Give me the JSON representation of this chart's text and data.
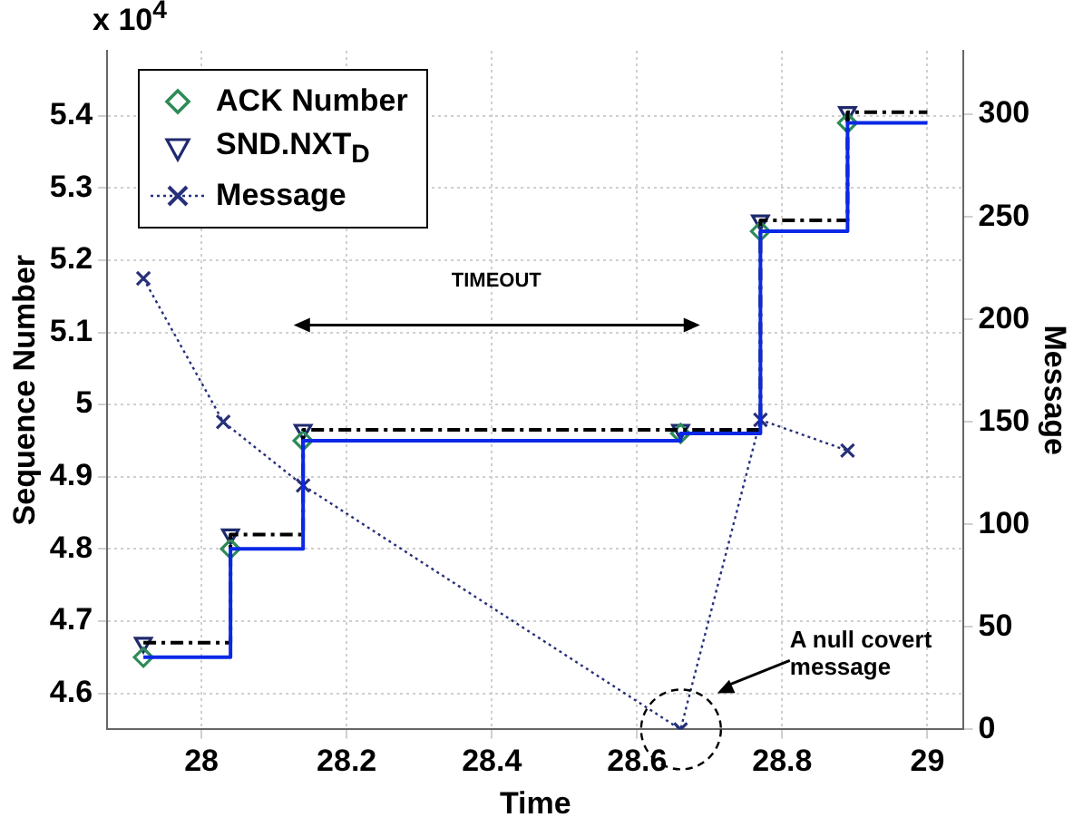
{
  "chart_data": {
    "type": "step",
    "xlabel": "Time",
    "ylabel": "Sequence Number",
    "y2label": "Message",
    "xlim": [
      27.87,
      29.05
    ],
    "xticks": [
      28,
      28.2,
      28.4,
      28.6,
      28.8,
      29
    ],
    "ylim": [
      4.55,
      5.49
    ],
    "yticks": [
      4.6,
      4.7,
      4.8,
      4.9,
      5,
      5.1,
      5.2,
      5.3,
      5.4
    ],
    "y2lim": [
      0,
      331
    ],
    "y2ticks": [
      0,
      50,
      100,
      150,
      200,
      250,
      300
    ],
    "grid": true,
    "legend": "top left",
    "annotations": [
      "x 10$^{4}$",
      "TIMEOUT",
      "A null covert message"
    ],
    "series": [
      {
        "color": "#0a28e6",
        "line_style": "solid",
        "marker": "none",
        "x": [
          27.92,
          28.04,
          28.14,
          28.66,
          28.77,
          28.89,
          29.0
        ],
        "values": [
          4.65,
          4.8,
          4.95,
          4.96,
          5.24,
          5.39,
          5.39
        ]
      },
      {
        "color": "#000000",
        "line_style": "dashed",
        "marker": "none",
        "x": [
          27.92,
          28.04,
          28.14,
          28.66,
          28.77,
          28.89,
          29.0
        ],
        "values": [
          4.67,
          4.82,
          4.965,
          4.965,
          5.255,
          5.405,
          5.405
        ]
      },
      {
        "type": "scatter",
        "name": "ACK Number",
        "color": "#2e8b57",
        "marker": "diamond",
        "x": [
          27.92,
          28.04,
          28.14,
          28.66,
          28.77,
          28.89
        ],
        "values": [
          4.65,
          4.8,
          4.95,
          4.96,
          5.24,
          5.39
        ]
      },
      {
        "type": "scatter",
        "name": "SND.NXT$_{D}$",
        "color": "#1f2a6e",
        "marker": "triangle",
        "x": [
          27.92,
          28.04,
          28.14,
          28.66,
          28.77,
          28.89
        ],
        "values": [
          4.67,
          4.82,
          4.965,
          4.965,
          5.255,
          5.405
        ]
      },
      {
        "type": "line",
        "name": "Message",
        "axis": "y2",
        "color": "#26307a",
        "marker": "cross",
        "line_style": "dotted",
        "x": [
          27.92,
          28.03,
          28.14,
          28.66,
          28.77,
          28.89
        ],
        "values": [
          220,
          150,
          119,
          0,
          151,
          136
        ]
      }
    ]
  }
}
